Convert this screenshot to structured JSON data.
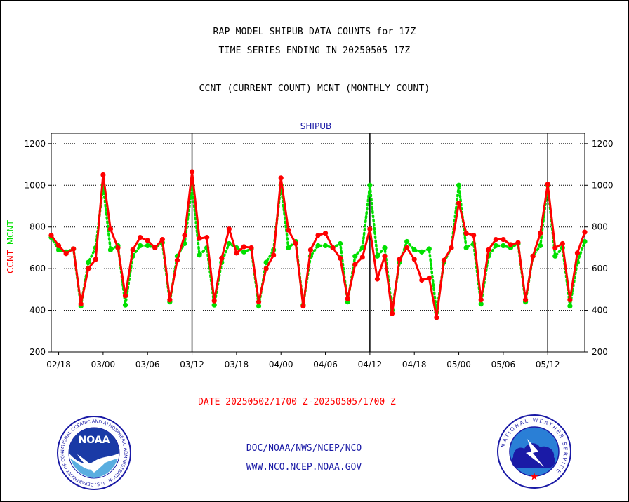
{
  "header": {
    "title_line1": "RAP MODEL SHIPUB DATA COUNTS for 17Z",
    "title_line2": "TIME SERIES ENDING IN 20250505 17Z",
    "subtitle": "CCNT (CURRENT COUNT) MCNT (MONTHLY COUNT)"
  },
  "footer": {
    "date_range": "DATE 20250502/1700 Z-20250505/1700 Z",
    "org": "DOC/NOAA/NWS/NCEP/NCO",
    "website": "WWW.NCO.NCEP.NOAA.GOV"
  },
  "logos": {
    "noaa_text": "NOAA",
    "noaa_ring": "NATIONAL OCEANIC AND ATMOSPHERIC ADMINISTRATION · U.S. DEPARTMENT OF COMMERCE",
    "nws_ring": "NATIONAL WEATHER SERVICE"
  },
  "colors": {
    "ccnt": "#ff0000",
    "mcnt": "#00e000",
    "panel_label": "#1a1aa6",
    "footer_text": "#1a1aa6"
  },
  "chart_data": {
    "type": "line",
    "panel_label": "SHIPUB",
    "ylabel_parts": [
      "CCNT",
      "MCNT"
    ],
    "ylim": [
      200,
      1250
    ],
    "yticks": [
      200,
      400,
      600,
      800,
      1000,
      1200
    ],
    "x_tick_labels": [
      "02/18",
      "03/00",
      "03/06",
      "03/12",
      "03/18",
      "04/00",
      "04/06",
      "04/12",
      "04/18",
      "05/00",
      "05/06",
      "05/12"
    ],
    "x_tick_index": [
      1,
      7,
      13,
      19,
      25,
      31,
      37,
      43,
      49,
      55,
      61,
      67
    ],
    "day_boundary_index": [
      19,
      43,
      67
    ],
    "grid": true,
    "series": [
      {
        "name": "CCNT",
        "values": [
          760,
          710,
          672,
          695,
          430,
          600,
          645,
          1050,
          790,
          700,
          470,
          690,
          750,
          735,
          700,
          740,
          450,
          640,
          760,
          1065,
          745,
          750,
          445,
          650,
          790,
          675,
          705,
          700,
          440,
          600,
          665,
          1035,
          785,
          720,
          420,
          690,
          760,
          770,
          700,
          650,
          455,
          620,
          655,
          790,
          550,
          660,
          385,
          645,
          700,
          645,
          545,
          555,
          365,
          640,
          700,
          915,
          770,
          760,
          450,
          690,
          740,
          740,
          715,
          725,
          450,
          660,
          770,
          1005,
          700,
          720,
          450,
          675,
          775
        ]
      },
      {
        "name": "MCNT",
        "values": [
          750,
          690,
          680,
          695,
          420,
          630,
          700,
          1000,
          690,
          710,
          425,
          660,
          710,
          710,
          700,
          725,
          440,
          660,
          720,
          1000,
          665,
          700,
          425,
          630,
          720,
          700,
          680,
          695,
          420,
          630,
          690,
          1000,
          700,
          730,
          425,
          660,
          710,
          710,
          700,
          720,
          440,
          660,
          700,
          1000,
          660,
          700,
          400,
          630,
          730,
          690,
          680,
          695,
          390,
          630,
          700,
          1000,
          700,
          720,
          430,
          660,
          710,
          710,
          700,
          720,
          440,
          660,
          710,
          1000,
          660,
          700,
          420,
          630,
          730
        ]
      }
    ]
  }
}
